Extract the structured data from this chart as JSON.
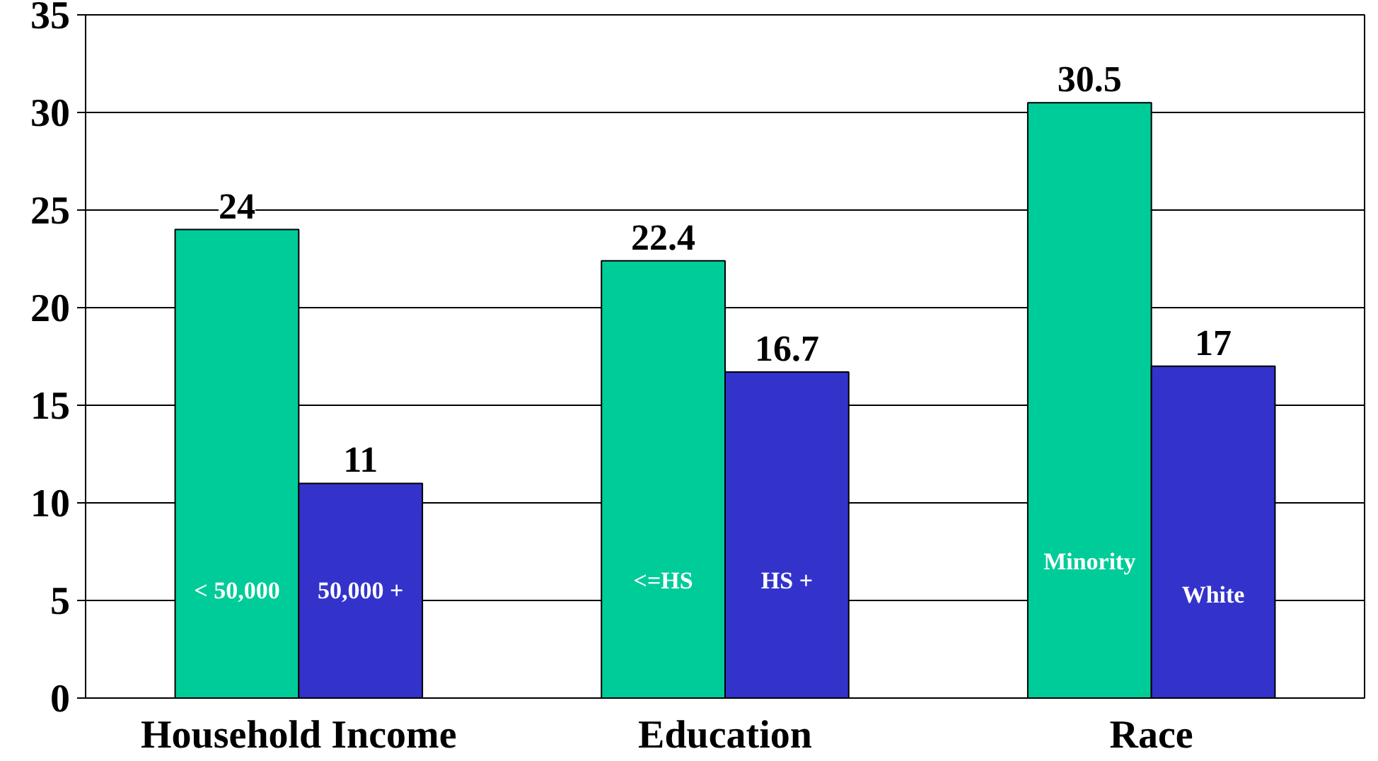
{
  "chart_data": {
    "type": "bar",
    "categories": [
      "Household Income",
      "Education",
      "Race"
    ],
    "series": [
      {
        "color": "#00cc99",
        "values": [
          24,
          22.4,
          30.5
        ]
      },
      {
        "color": "#3333cc",
        "values": [
          11,
          16.7,
          17
        ]
      }
    ],
    "ylim": [
      0,
      35
    ],
    "yticks": [
      0,
      5,
      10,
      15,
      20,
      25,
      30,
      35
    ],
    "grid": "y",
    "data_labels": true,
    "annotations": [
      {
        "text": "< 50,000",
        "x": "Household Income",
        "y": 5.5
      },
      {
        "text": "50,000 +",
        "x": "Household Income",
        "y": 5.5
      },
      {
        "text": "<=HS",
        "x": "Education",
        "y": 6
      },
      {
        "text": "HS +",
        "x": "Education",
        "y": 6
      },
      {
        "text": "Minority",
        "x": "Race",
        "y": 7
      },
      {
        "text": "White",
        "x": "Race",
        "y": 5.3
      }
    ]
  }
}
